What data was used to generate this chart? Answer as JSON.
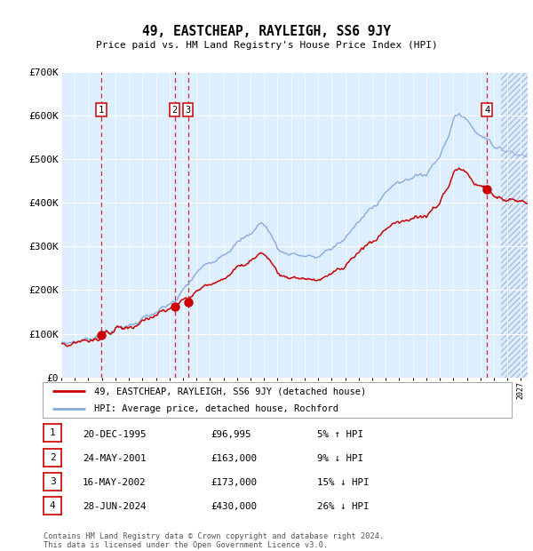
{
  "title": "49, EASTCHEAP, RAYLEIGH, SS6 9JY",
  "subtitle": "Price paid vs. HM Land Registry's House Price Index (HPI)",
  "ylim": [
    0,
    700000
  ],
  "yticks": [
    0,
    100000,
    200000,
    300000,
    400000,
    500000,
    600000,
    700000
  ],
  "ytick_labels": [
    "£0",
    "£100K",
    "£200K",
    "£300K",
    "£400K",
    "£500K",
    "£600K",
    "£700K"
  ],
  "bg_color": "#ddeeff",
  "grid_color": "#ffffff",
  "red_line_color": "#cc0000",
  "blue_line_color": "#88aadd",
  "transaction_years": [
    1995.97,
    2001.39,
    2002.37,
    2024.49
  ],
  "transaction_prices": [
    96995,
    163000,
    173000,
    430000
  ],
  "transaction_labels": [
    "1",
    "2",
    "3",
    "4"
  ],
  "legend_label_red": "49, EASTCHEAP, RAYLEIGH, SS6 9JY (detached house)",
  "legend_label_blue": "HPI: Average price, detached house, Rochford",
  "table_data": [
    [
      "1",
      "20-DEC-1995",
      "£96,995",
      "5% ↑ HPI"
    ],
    [
      "2",
      "24-MAY-2001",
      "£163,000",
      "9% ↓ HPI"
    ],
    [
      "3",
      "16-MAY-2002",
      "£173,000",
      "15% ↓ HPI"
    ],
    [
      "4",
      "28-JUN-2024",
      "£430,000",
      "26% ↓ HPI"
    ]
  ],
  "footer_text": "Contains HM Land Registry data © Crown copyright and database right 2024.\nThis data is licensed under the Open Government Licence v3.0.",
  "xmin": 1993.0,
  "xmax": 2027.5,
  "future_start": 2025.5
}
